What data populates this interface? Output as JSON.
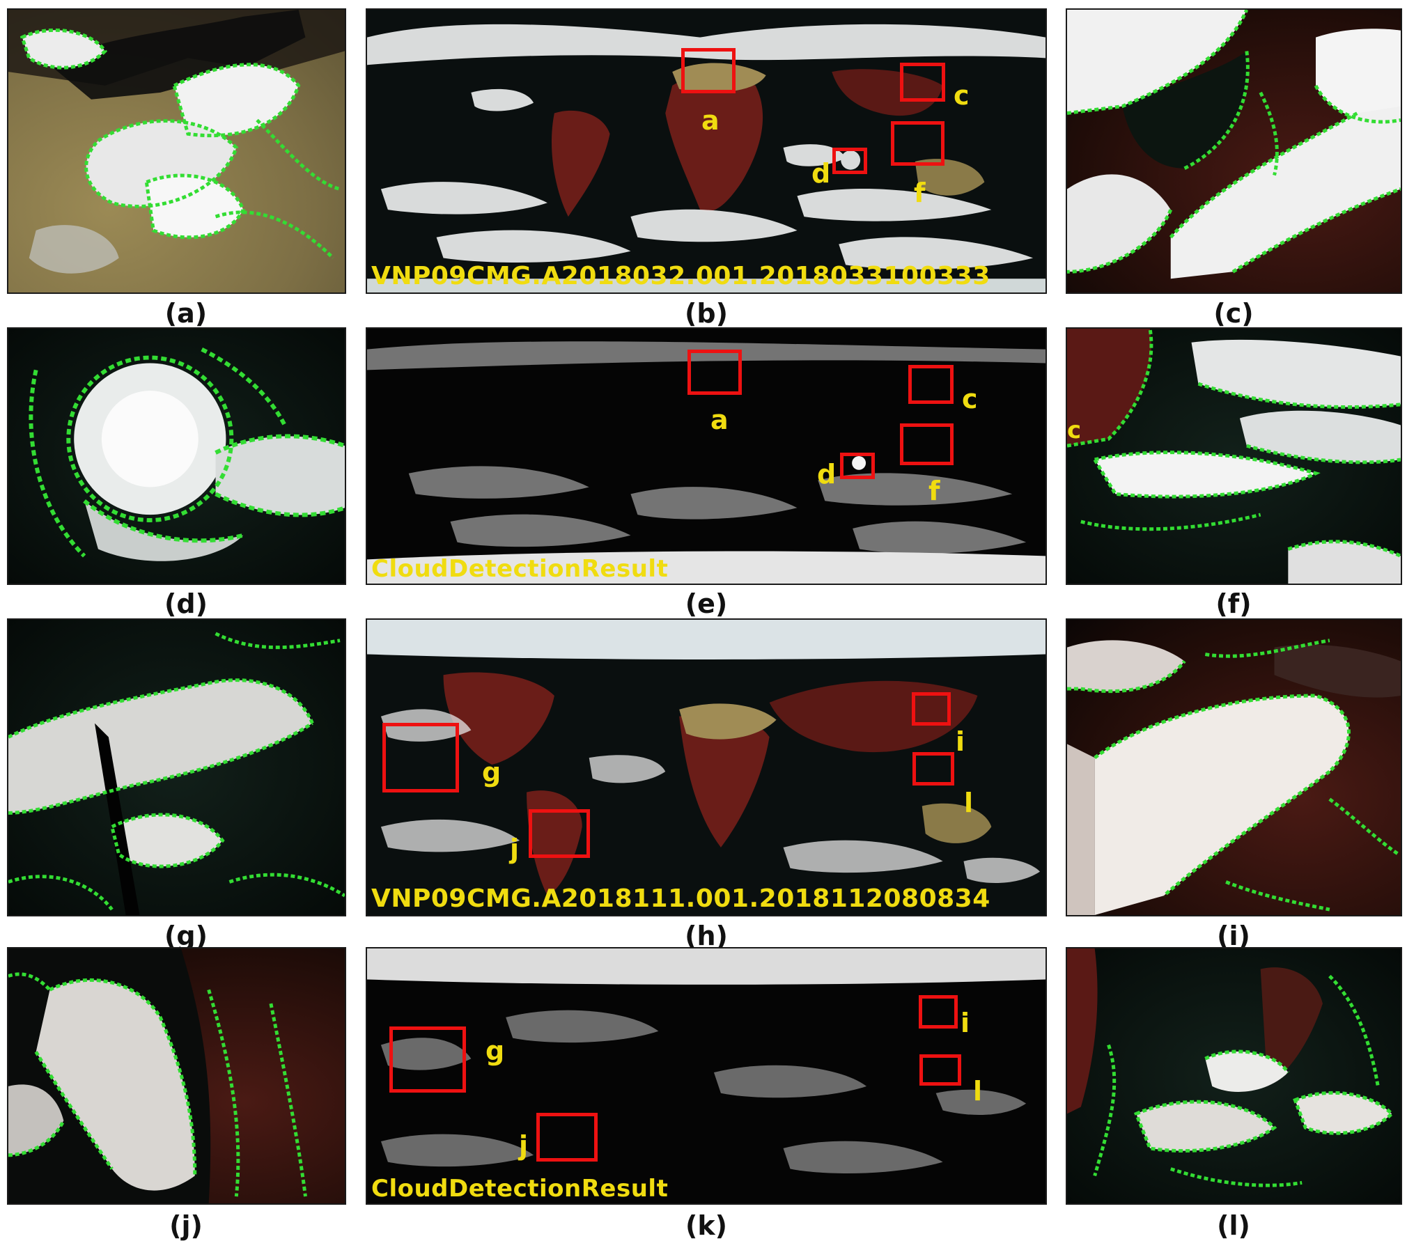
{
  "figure": {
    "captions": [
      "(a)",
      "(b)",
      "(c)",
      "(d)",
      "(e)",
      "(f)",
      "(g)",
      "(h)",
      "(i)",
      "(j)",
      "(k)",
      "(l)"
    ],
    "stamps": {
      "b": "VNP09CMG.A2018032.001.2018033100333",
      "e": "CloudDetectionResult",
      "h": "VNP09CMG.A2018111.001.2018112080834",
      "k": "CloudDetectionResult"
    },
    "region_labels": {
      "b": [
        "a",
        "c",
        "d",
        "f"
      ],
      "e": [
        "a",
        "c",
        "d",
        "f"
      ],
      "h": [
        "g",
        "i",
        "j",
        "l"
      ],
      "k": [
        "g",
        "i",
        "j",
        "l"
      ]
    },
    "edge_label_f": "c"
  },
  "colors": {
    "cloud": "#ffffff",
    "mask_edge": "#33dd33",
    "region_box": "#ee1111",
    "label": "#f0dc10",
    "land_vegetation": "#6a1d18",
    "desert": "#a08c55",
    "ocean": "#0a1210"
  }
}
